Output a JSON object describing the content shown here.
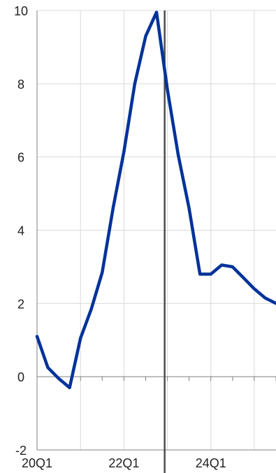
{
  "chart_data": {
    "type": "line",
    "title": "",
    "xlabel": "",
    "ylabel": "",
    "x": [
      "20Q1",
      "20Q2",
      "20Q3",
      "20Q4",
      "21Q1",
      "21Q2",
      "21Q3",
      "21Q4",
      "22Q1",
      "22Q2",
      "22Q3",
      "22Q4",
      "23Q1",
      "23Q2",
      "23Q3",
      "23Q4",
      "24Q1",
      "24Q2",
      "24Q3",
      "24Q4",
      "25Q1",
      "25Q2",
      "25Q3"
    ],
    "x_tick_labels": [
      "20Q1",
      "22Q1",
      "24Q1"
    ],
    "ylim": [
      -2,
      10
    ],
    "y_ticks": [
      -2,
      0,
      2,
      4,
      6,
      8,
      10
    ],
    "grid": true,
    "vertical_marker_at": 11.75,
    "series": [
      {
        "color": "#003299",
        "values": [
          1.1,
          0.25,
          -0.05,
          -0.3,
          1.05,
          1.85,
          2.85,
          4.6,
          6.15,
          8.0,
          9.3,
          9.95,
          7.85,
          6.05,
          4.6,
          2.8,
          2.8,
          3.05,
          3.0,
          2.7,
          2.4,
          2.15,
          2.0
        ]
      }
    ],
    "axis_color": "#7f7f7f",
    "grid_color": "#d9d9d9",
    "marker_color": "#4d4d4d"
  }
}
